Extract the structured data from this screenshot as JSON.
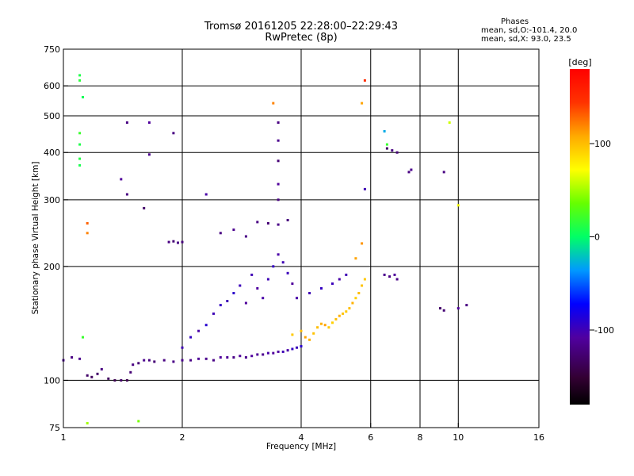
{
  "header": {
    "title_line1": "Tromsø 20161205 22:28:00–22:29:43",
    "title_line2": "RwPretec (8p)"
  },
  "phases_panel": {
    "heading": "Phases",
    "line_o": "mean, sd,O:-101.4, 20.0",
    "line_x": "mean, sd,X: 93.0, 23.5"
  },
  "colorbar": {
    "label": "[deg]",
    "ticks": [
      {
        "value": 100,
        "text": "100"
      },
      {
        "value": 0,
        "text": "0"
      },
      {
        "value": -100,
        "text": "-100"
      }
    ],
    "range": [
      -180,
      180
    ]
  },
  "chart_data": {
    "type": "scatter",
    "title": "Tromsø 20161205 22:28:00–22:29:43",
    "subtitle": "RwPretec (8p)",
    "xlabel": "Frequency [MHz]",
    "ylabel": "Stationary phase Virtual Height [km]",
    "xscale": "log",
    "yscale": "log",
    "xlim": [
      1,
      16
    ],
    "ylim": [
      75,
      750
    ],
    "grid": true,
    "xticks": [
      1,
      2,
      4,
      6,
      8,
      10,
      16
    ],
    "xtick_labels": [
      "1",
      "2",
      "4",
      "6",
      "8",
      "10",
      "16"
    ],
    "yticks": [
      75,
      100,
      200,
      300,
      400,
      500,
      600,
      750
    ],
    "ytick_labels": [
      "75",
      "100",
      "200",
      "300",
      "400",
      "500",
      "600",
      "750"
    ],
    "color_variable": "phase [deg]",
    "series": [
      {
        "trace": "o-mode lower trace (purple/blue)",
        "points": [
          [
            1.0,
            113,
            -110
          ],
          [
            1.05,
            115,
            -120
          ],
          [
            1.1,
            114,
            -115
          ],
          [
            1.15,
            103,
            -130
          ],
          [
            1.18,
            102,
            -135
          ],
          [
            1.22,
            104,
            -130
          ],
          [
            1.25,
            107,
            -120
          ],
          [
            1.3,
            101,
            -135
          ],
          [
            1.35,
            100,
            -140
          ],
          [
            1.4,
            100,
            -130
          ],
          [
            1.45,
            100,
            -140
          ],
          [
            1.48,
            105,
            -125
          ],
          [
            1.5,
            110,
            -120
          ],
          [
            1.55,
            111,
            -125
          ],
          [
            1.6,
            113,
            -115
          ],
          [
            1.65,
            113,
            -120
          ],
          [
            1.7,
            112,
            -125
          ],
          [
            1.8,
            113,
            -120
          ],
          [
            1.9,
            112,
            -118
          ],
          [
            2.0,
            113,
            -115
          ],
          [
            2.1,
            113,
            -118
          ],
          [
            2.2,
            114,
            -112
          ],
          [
            2.3,
            114,
            -115
          ],
          [
            2.4,
            113,
            -118
          ],
          [
            2.5,
            115,
            -110
          ],
          [
            2.6,
            115,
            -112
          ],
          [
            2.7,
            115,
            -118
          ],
          [
            2.8,
            116,
            -110
          ],
          [
            2.9,
            115,
            -115
          ],
          [
            3.0,
            116,
            -108
          ],
          [
            3.1,
            117,
            -112
          ],
          [
            3.2,
            117,
            -115
          ],
          [
            3.3,
            118,
            -105
          ],
          [
            3.4,
            118,
            -110
          ],
          [
            3.5,
            119,
            -108
          ],
          [
            3.6,
            119,
            -100
          ],
          [
            3.7,
            120,
            -105
          ],
          [
            3.8,
            121,
            -95
          ],
          [
            3.9,
            122,
            -98
          ],
          [
            4.0,
            123,
            -90
          ]
        ]
      },
      {
        "trace": "o-mode F-region spread (blue)",
        "points": [
          [
            2.0,
            122,
            -100
          ],
          [
            2.1,
            130,
            -95
          ],
          [
            2.2,
            135,
            -105
          ],
          [
            2.3,
            140,
            -90
          ],
          [
            2.4,
            150,
            -100
          ],
          [
            2.5,
            158,
            -95
          ],
          [
            2.6,
            162,
            -100
          ],
          [
            2.7,
            170,
            -92
          ],
          [
            2.8,
            178,
            -98
          ],
          [
            2.9,
            160,
            -110
          ],
          [
            3.0,
            190,
            -100
          ],
          [
            3.1,
            175,
            -108
          ],
          [
            3.2,
            165,
            -105
          ],
          [
            3.3,
            185,
            -100
          ],
          [
            3.4,
            200,
            -95
          ],
          [
            3.5,
            215,
            -105
          ],
          [
            3.6,
            205,
            -100
          ],
          [
            3.7,
            192,
            -98
          ],
          [
            3.8,
            180,
            -110
          ],
          [
            3.9,
            165,
            -105
          ],
          [
            4.2,
            170,
            -100
          ],
          [
            4.5,
            175,
            -95
          ],
          [
            4.8,
            180,
            -98
          ],
          [
            5.0,
            185,
            -105
          ],
          [
            5.2,
            190,
            -100
          ]
        ]
      },
      {
        "trace": "x-mode trace (yellow/orange)",
        "points": [
          [
            3.8,
            132,
            95
          ],
          [
            4.0,
            135,
            100
          ],
          [
            4.1,
            130,
            110
          ],
          [
            4.2,
            128,
            105
          ],
          [
            4.3,
            133,
            98
          ],
          [
            4.4,
            138,
            100
          ],
          [
            4.5,
            141,
            105
          ],
          [
            4.6,
            140,
            110
          ],
          [
            4.7,
            138,
            95
          ],
          [
            4.8,
            142,
            92
          ],
          [
            4.9,
            145,
            100
          ],
          [
            5.0,
            148,
            105
          ],
          [
            5.1,
            150,
            98
          ],
          [
            5.2,
            152,
            95
          ],
          [
            5.3,
            155,
            100
          ],
          [
            5.4,
            160,
            105
          ],
          [
            5.5,
            165,
            92
          ],
          [
            5.6,
            170,
            100
          ],
          [
            5.7,
            178,
            98
          ],
          [
            5.8,
            185,
            95
          ]
        ]
      },
      {
        "trace": "upper F-region traces (purple)",
        "points": [
          [
            1.85,
            232,
            -120
          ],
          [
            1.9,
            233,
            -125
          ],
          [
            1.95,
            231,
            -118
          ],
          [
            2.0,
            232,
            -122
          ],
          [
            2.5,
            245,
            -120
          ],
          [
            2.7,
            250,
            -115
          ],
          [
            2.9,
            240,
            -118
          ],
          [
            3.1,
            262,
            -120
          ],
          [
            3.3,
            260,
            -125
          ],
          [
            3.5,
            258,
            -118
          ],
          [
            3.7,
            265,
            -122
          ]
        ]
      },
      {
        "trace": "high-frequency cluster (purple/blue)",
        "points": [
          [
            6.5,
            190,
            -115
          ],
          [
            6.7,
            188,
            -120
          ],
          [
            6.9,
            190,
            -110
          ],
          [
            7.0,
            185,
            -118
          ],
          [
            6.6,
            410,
            -130
          ],
          [
            6.8,
            405,
            -120
          ],
          [
            7.0,
            400,
            -125
          ],
          [
            7.5,
            355,
            -120
          ],
          [
            7.6,
            360,
            -115
          ],
          [
            9.0,
            155,
            -130
          ],
          [
            9.2,
            153,
            -125
          ],
          [
            10.0,
            155,
            -110
          ],
          [
            10.5,
            158,
            -120
          ]
        ]
      },
      {
        "trace": "scattered green/cyan points",
        "points": [
          [
            1.1,
            640,
            10
          ],
          [
            1.1,
            620,
            15
          ],
          [
            1.12,
            560,
            5
          ],
          [
            1.1,
            450,
            20
          ],
          [
            1.1,
            420,
            10
          ],
          [
            1.1,
            385,
            12
          ],
          [
            1.1,
            370,
            8
          ],
          [
            1.12,
            130,
            20
          ],
          [
            1.15,
            77,
            50
          ],
          [
            1.55,
            78,
            40
          ],
          [
            6.5,
            455,
            -30
          ],
          [
            6.6,
            420,
            20
          ],
          [
            9.5,
            480,
            60
          ],
          [
            10.0,
            290,
            70
          ]
        ]
      },
      {
        "trace": "scattered blue/purple isolated points",
        "points": [
          [
            1.45,
            480,
            -120
          ],
          [
            1.65,
            480,
            -110
          ],
          [
            1.9,
            450,
            -120
          ],
          [
            1.65,
            395,
            -115
          ],
          [
            1.4,
            340,
            -110
          ],
          [
            1.45,
            310,
            -120
          ],
          [
            2.3,
            310,
            -105
          ],
          [
            1.6,
            285,
            -130
          ],
          [
            3.5,
            480,
            -120
          ],
          [
            3.5,
            430,
            -115
          ],
          [
            3.5,
            380,
            -125
          ],
          [
            3.5,
            330,
            -110
          ],
          [
            3.5,
            300,
            -120
          ],
          [
            5.8,
            320,
            -100
          ],
          [
            9.2,
            355,
            -120
          ]
        ]
      },
      {
        "trace": "scattered orange/red isolated points",
        "points": [
          [
            3.4,
            540,
            120
          ],
          [
            5.7,
            540,
            110
          ],
          [
            5.8,
            620,
            150
          ],
          [
            1.15,
            260,
            130
          ],
          [
            1.15,
            245,
            120
          ],
          [
            5.7,
            230,
            115
          ],
          [
            5.5,
            210,
            110
          ]
        ]
      }
    ]
  }
}
